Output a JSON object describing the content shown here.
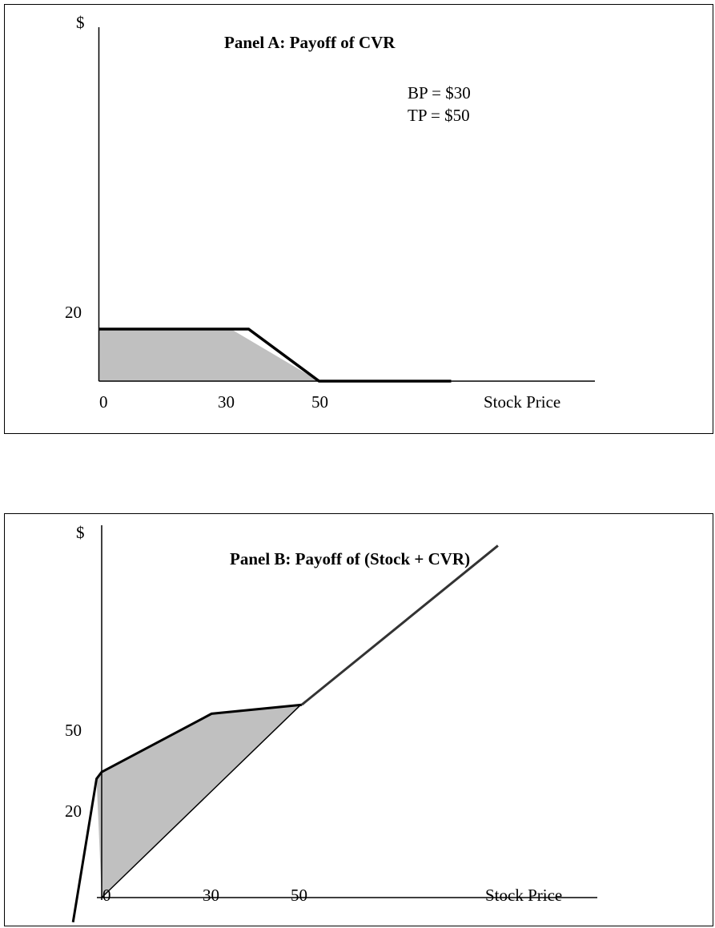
{
  "chart_data": [
    {
      "type": "line",
      "title": "Panel A: Payoff of CVR",
      "ylabel": "$",
      "xlabel": "Stock Price",
      "x_ticks": [
        "0",
        "30",
        "50"
      ],
      "y_ticks": [
        "20"
      ],
      "annotations": [
        "BP = $30",
        "TP = $50"
      ],
      "series": [
        {
          "points": [
            [
              0,
              20
            ],
            [
              30,
              20
            ],
            [
              50,
              0
            ],
            [
              80,
              0
            ]
          ]
        }
      ],
      "shaded_region": [
        [
          0,
          0
        ],
        [
          0,
          20
        ],
        [
          30,
          20
        ],
        [
          50,
          0
        ]
      ],
      "xlim": [
        0,
        100
      ],
      "ylim": [
        0,
        70
      ]
    },
    {
      "type": "line",
      "title": "Panel B: Payoff of (Stock + CVR)",
      "ylabel": "$",
      "xlabel": "Stock Price",
      "x_ticks": [
        "0",
        "30",
        "50"
      ],
      "y_ticks": [
        "50",
        "20"
      ],
      "series": [
        {
          "points": [
            [
              -5,
              -5
            ],
            [
              -1,
              20
            ],
            [
              0,
              20
            ],
            [
              30,
              50
            ],
            [
              50,
              50
            ],
            [
              86,
              86
            ]
          ]
        },
        {
          "points": [
            [
              0,
              0
            ],
            [
              50,
              50
            ]
          ]
        }
      ],
      "shaded_region": [
        [
          -1,
          20
        ],
        [
          0,
          20
        ],
        [
          30,
          50
        ],
        [
          50,
          50
        ],
        [
          0,
          0
        ]
      ],
      "xlim": [
        -5,
        100
      ],
      "ylim": [
        -5,
        100
      ]
    }
  ]
}
